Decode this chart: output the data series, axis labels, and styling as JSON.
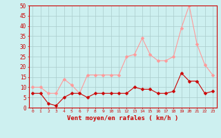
{
  "title": "",
  "xlabel": "Vent moyen/en rafales ( km/h )",
  "background_color": "#cdf0f0",
  "grid_color": "#aacccc",
  "x_labels": [
    0,
    1,
    2,
    3,
    4,
    5,
    6,
    7,
    8,
    9,
    10,
    11,
    12,
    13,
    14,
    15,
    16,
    17,
    18,
    19,
    20,
    21,
    22,
    23
  ],
  "vent_moyen": [
    7,
    7,
    2,
    1,
    5,
    7,
    7,
    5,
    7,
    7,
    7,
    7,
    7,
    10,
    9,
    9,
    7,
    7,
    8,
    17,
    13,
    13,
    7,
    8
  ],
  "rafales": [
    10,
    10,
    7,
    7,
    14,
    11,
    7,
    16,
    16,
    16,
    16,
    16,
    25,
    26,
    34,
    26,
    23,
    23,
    25,
    39,
    50,
    31,
    21,
    16
  ],
  "color_moyen": "#cc0000",
  "color_rafales": "#ff9999",
  "ylim": [
    0,
    50
  ],
  "yticks": [
    0,
    5,
    10,
    15,
    20,
    25,
    30,
    35,
    40,
    45,
    50
  ],
  "marker_size": 2.5,
  "line_width": 0.8
}
